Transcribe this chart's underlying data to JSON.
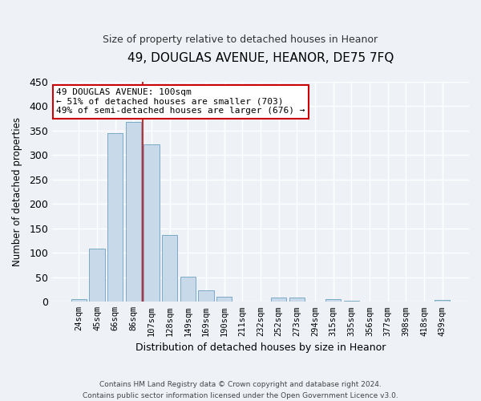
{
  "title": "49, DOUGLAS AVENUE, HEANOR, DE75 7FQ",
  "subtitle": "Size of property relative to detached houses in Heanor",
  "xlabel": "Distribution of detached houses by size in Heanor",
  "ylabel": "Number of detached properties",
  "bar_color": "#c8daea",
  "bar_edge_color": "#7aaac8",
  "categories": [
    "24sqm",
    "45sqm",
    "66sqm",
    "86sqm",
    "107sqm",
    "128sqm",
    "149sqm",
    "169sqm",
    "190sqm",
    "211sqm",
    "232sqm",
    "252sqm",
    "273sqm",
    "294sqm",
    "315sqm",
    "335sqm",
    "356sqm",
    "377sqm",
    "398sqm",
    "418sqm",
    "439sqm"
  ],
  "values": [
    5,
    109,
    345,
    368,
    322,
    136,
    52,
    24,
    11,
    0,
    0,
    8,
    8,
    0,
    5,
    2,
    0,
    0,
    0,
    0,
    3
  ],
  "ylim": [
    0,
    450
  ],
  "yticks": [
    0,
    50,
    100,
    150,
    200,
    250,
    300,
    350,
    400,
    450
  ],
  "property_line_x": 4.0,
  "annotation_text": "49 DOUGLAS AVENUE: 100sqm\n← 51% of detached houses are smaller (703)\n49% of semi-detached houses are larger (676) →",
  "annotation_box_color": "#ffffff",
  "annotation_box_edge_color": "#cc0000",
  "footer_line1": "Contains HM Land Registry data © Crown copyright and database right 2024.",
  "footer_line2": "Contains public sector information licensed under the Open Government Licence v3.0.",
  "background_color": "#eef2f7",
  "grid_color": "#ffffff",
  "fig_width": 6.0,
  "fig_height": 5.0
}
